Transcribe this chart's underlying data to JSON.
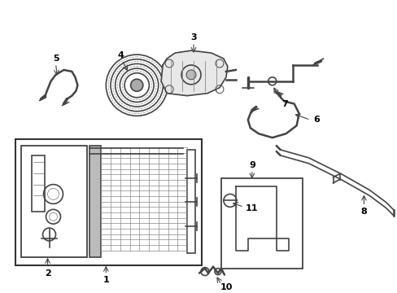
{
  "bg_color": "#ffffff",
  "line_color": "#444444",
  "label_color": "#000000",
  "fig_width": 4.89,
  "fig_height": 3.6,
  "dpi": 100
}
